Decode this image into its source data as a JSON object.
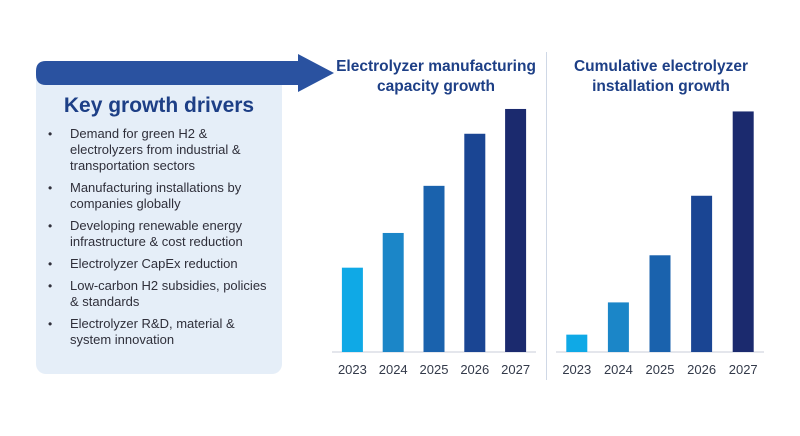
{
  "drivers": {
    "title": "Key growth drivers",
    "items": [
      "Demand for green H2 & electrolyzers from industrial & transportation sectors",
      "Manufacturing installations by companies globally",
      "Developing renewable energy infrastructure & cost reduction",
      "Electrolyzer CapEx reduction",
      "Low-carbon H2 subsidies, policies & standards",
      "Electrolyzer R&D, material & system innovation"
    ],
    "bullet": "•"
  },
  "colors": {
    "panel": "#e5eef8",
    "arrow": "#2a52a0",
    "title": "#1d3f86",
    "bars": [
      "#0fa9e6",
      "#1b86c8",
      "#1a62ad",
      "#1a4593",
      "#1b2a6e"
    ]
  },
  "chart_data": [
    {
      "type": "bar",
      "title": "Electrolyzer manufacturing capacity growth",
      "categories": [
        "2023",
        "2024",
        "2025",
        "2026",
        "2027"
      ],
      "values": [
        34,
        48,
        67,
        88,
        98
      ],
      "ylim": [
        0,
        100
      ],
      "grid": false,
      "legend": "none"
    },
    {
      "type": "bar",
      "title": "Cumulative electrolyzer installation growth",
      "categories": [
        "2023",
        "2024",
        "2025",
        "2026",
        "2027"
      ],
      "values": [
        7,
        20,
        39,
        63,
        97
      ],
      "ylim": [
        0,
        100
      ],
      "grid": false,
      "legend": "none"
    }
  ]
}
